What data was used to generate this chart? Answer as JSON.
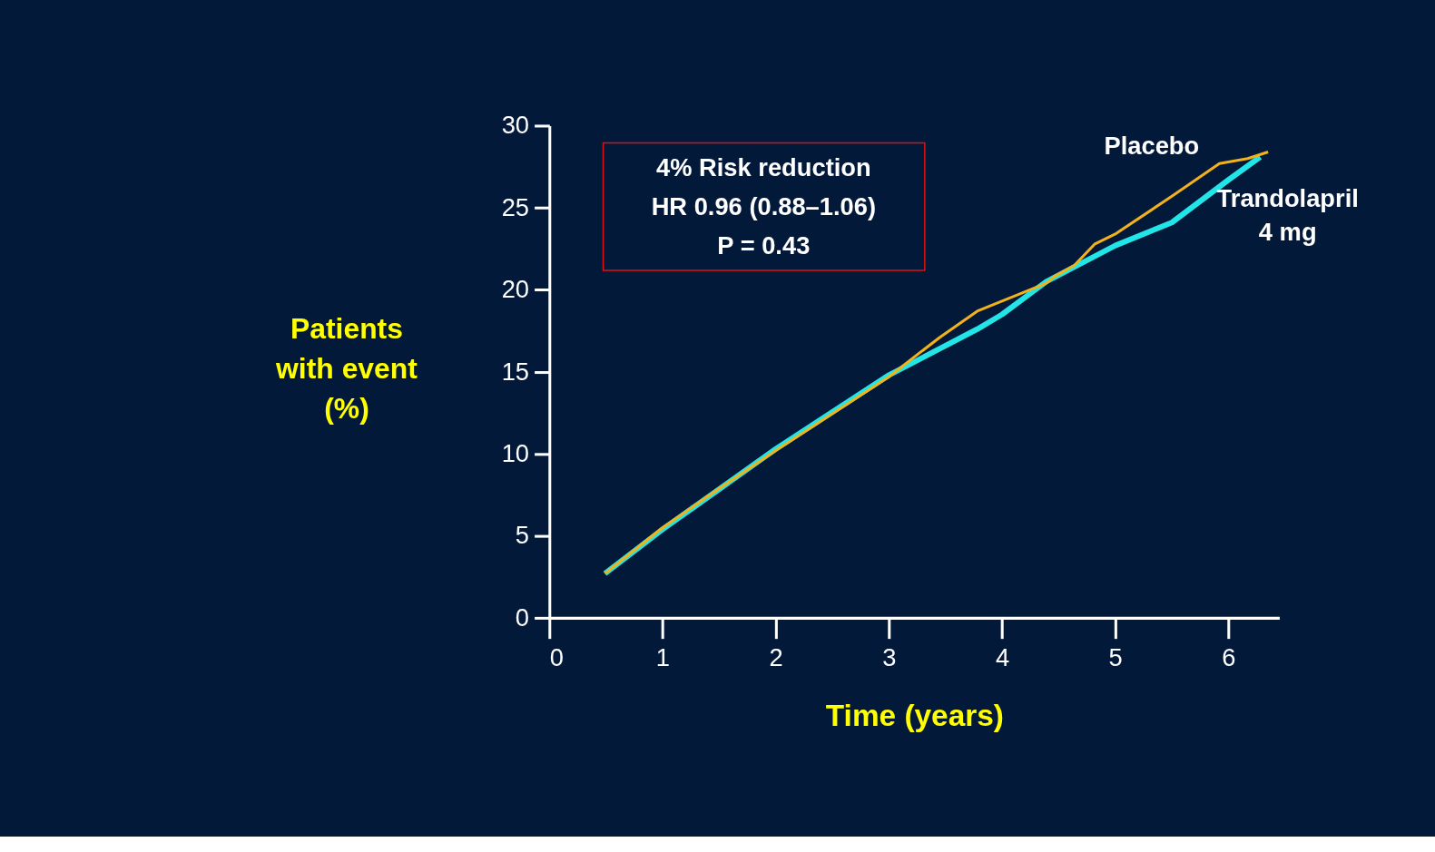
{
  "chart_data": {
    "type": "line",
    "xlabel": "Time (years)",
    "ylabel": "Patients\nwith event\n(%)",
    "xlim": [
      0,
      6.45
    ],
    "ylim": [
      0,
      30
    ],
    "xticks": [
      0,
      1,
      2,
      3,
      4,
      5,
      6
    ],
    "yticks": [
      0,
      5,
      10,
      15,
      20,
      25,
      30
    ],
    "grid": false,
    "marker": "none",
    "line_style": "solid",
    "annotations": [
      "4% Risk reduction\nHR 0.96 (0.88–1.06)\nP = 0.43"
    ],
    "series": [
      {
        "name": "Trandolapril\n4 mg",
        "color": "#22e5e8",
        "x": [
          0.49,
          1,
          2,
          3,
          3.78,
          4,
          4.39,
          5,
          5.5,
          6,
          6.28
        ],
        "values": [
          2.7,
          5.4,
          10.3,
          14.8,
          17.6,
          18.5,
          20.5,
          22.7,
          24.1,
          26.7,
          28.1
        ]
      },
      {
        "name": "Placebo",
        "color": "#f2b21a",
        "x": [
          0.49,
          1,
          1.46,
          2,
          3,
          3.26,
          3.45,
          3.78,
          4.39,
          4.46,
          4.64,
          4.82,
          5,
          5.5,
          5.92,
          6.17,
          6.35
        ],
        "values": [
          2.7,
          5.5,
          7.7,
          10.2,
          14.7,
          16.1,
          17.1,
          18.7,
          20.4,
          20.8,
          21.5,
          22.8,
          23.4,
          25.7,
          27.7,
          28.0,
          28.4
        ]
      }
    ]
  }
}
